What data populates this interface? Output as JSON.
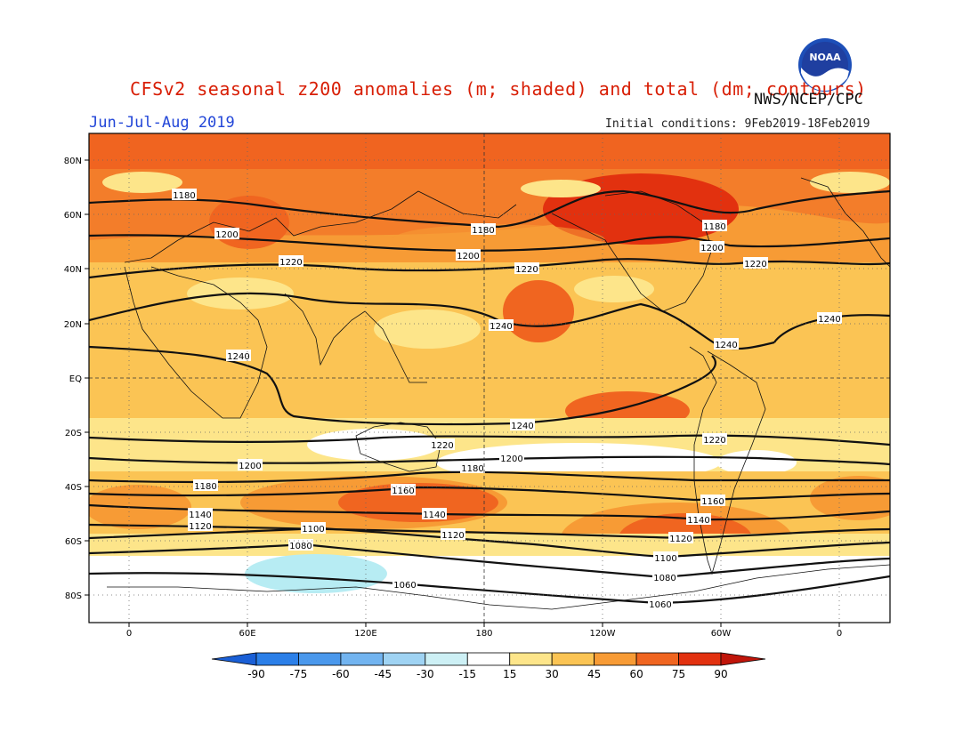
{
  "header": {
    "title": "CFSv2 seasonal z200 anomalies (m; shaded) and total (dm; contours)",
    "agency": "NWS/NCEP/CPC",
    "season": "Jun-Jul-Aug 2019",
    "initial_conditions": "Initial conditions: 9Feb2019-18Feb2019",
    "logo_text": "NOAA"
  },
  "map": {
    "lat_labels": [
      "80N",
      "60N",
      "40N",
      "20N",
      "EQ",
      "20S",
      "40S",
      "60S",
      "80S"
    ],
    "lon_labels": [
      "0",
      "60E",
      "120E",
      "180",
      "120W",
      "60W",
      "0"
    ],
    "contours": [
      {
        "value": "1240",
        "labels": [
          "1240",
          "1240",
          "1240",
          "1240",
          "1240"
        ]
      },
      {
        "value": "1220",
        "labels": [
          "1220",
          "1220",
          "1220",
          "1220",
          "1220"
        ]
      },
      {
        "value": "1200",
        "labels": [
          "1200",
          "1200",
          "1200",
          "1200",
          "1200"
        ]
      },
      {
        "value": "1180",
        "labels": [
          "1180",
          "1180",
          "1180",
          "1180",
          "1180"
        ]
      },
      {
        "value": "1160",
        "labels": [
          "1160",
          "1160"
        ]
      },
      {
        "value": "1140",
        "labels": [
          "1140",
          "1140",
          "1140"
        ]
      },
      {
        "value": "1120",
        "labels": [
          "1120",
          "1120",
          "1120"
        ]
      },
      {
        "value": "1100",
        "labels": [
          "1100",
          "1100"
        ]
      },
      {
        "value": "1080",
        "labels": [
          "1080",
          "1080"
        ]
      },
      {
        "value": "1060",
        "labels": [
          "1060",
          "1060"
        ]
      }
    ]
  },
  "colorbar": {
    "labels": [
      "-90",
      "-75",
      "-60",
      "-45",
      "-30",
      "-15",
      "15",
      "30",
      "45",
      "60",
      "75",
      "90"
    ],
    "colors": [
      "#1a5fd6",
      "#2b7fe8",
      "#4a98ec",
      "#72b4f0",
      "#9fd3f3",
      "#cdf0f5",
      "#ffffff",
      "#fde58a",
      "#fbc454",
      "#f79b35",
      "#f06520",
      "#e2310f",
      "#c0150a"
    ]
  },
  "anomaly_colors": {
    "neg15": "#b7ecf3",
    "zero": "#ffffff",
    "p15": "#fde58a",
    "p30": "#fbc454",
    "p45": "#f79b35",
    "p60": "#f06520",
    "p75": "#e2310f"
  }
}
